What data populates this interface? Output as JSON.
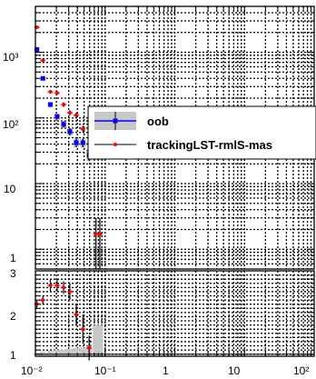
{
  "chart_data": [
    {
      "panel": "main",
      "type": "scatter",
      "x_scale": "log",
      "y_scale": "log",
      "xlim": [
        0.01,
        100
      ],
      "ylim": [
        0.5,
        5000
      ],
      "grid": true,
      "legend_placement": "middle-right",
      "y_tick_labels": [
        "1",
        "10",
        "10²",
        "10³"
      ],
      "legend": [
        "oob",
        "trackingLST-rmlS-mas"
      ],
      "series": [
        {
          "name": "oob",
          "color": "#0000ff",
          "marker": "square",
          "band_color": "#c8c8c8",
          "x": [
            0.0105,
            0.0128,
            0.0164,
            0.0205,
            0.0254,
            0.0312,
            0.0386,
            0.048,
            0.059
          ],
          "y": [
            1100,
            400,
            160,
            105,
            80,
            62,
            42,
            42,
            27
          ],
          "yerr": [
            35,
            20,
            13,
            10,
            9,
            8,
            6.5,
            6.5,
            5
          ]
        },
        {
          "name": "trackingLST-rmlS-mas",
          "color": "#ff0000",
          "marker": "circle",
          "x": [
            0.0105,
            0.0128,
            0.0164,
            0.0205,
            0.0254,
            0.0312,
            0.0386,
            0.048,
            0.059,
            0.074,
            0.084
          ],
          "y": [
            2400,
            750,
            250,
            240,
            160,
            120,
            110,
            68,
            32,
            1.7,
            1.7
          ],
          "yerr": [
            50,
            27,
            16,
            15,
            13,
            11,
            10.5,
            8,
            6,
            1.3,
            1.3
          ]
        }
      ]
    },
    {
      "panel": "ratio",
      "type": "scatter",
      "x_scale": "log",
      "xlim": [
        0.01,
        100
      ],
      "ylim": [
        0.95,
        3
      ],
      "x_tick_labels": [
        "10⁻²",
        "10⁻¹",
        "1",
        "10",
        "10²"
      ],
      "y_tick_labels": [
        "1",
        "2",
        "3"
      ],
      "series": [
        {
          "name": "trackingLST-rmlS-mas",
          "color": "#ff0000",
          "x": [
            0.0105,
            0.0128,
            0.0164,
            0.0205,
            0.0254,
            0.0312,
            0.0386,
            0.048,
            0.059
          ],
          "y": [
            2.2,
            2.3,
            2.65,
            2.65,
            2.6,
            2.5,
            1.95,
            1.6,
            1.15
          ],
          "yerr": [
            0.08,
            0.1,
            0.15,
            0.15,
            0.15,
            0.2,
            0.25,
            0.35,
            0.3
          ]
        }
      ],
      "band": {
        "color": "#c8c8c8",
        "x": [
          0.0105,
          0.0128,
          0.0164,
          0.0205,
          0.0254,
          0.0312,
          0.0386,
          0.048,
          0.059,
          0.074,
          0.084
        ],
        "half_width": [
          0.03,
          0.05,
          0.08,
          0.1,
          0.11,
          0.13,
          0.15,
          0.16,
          0.2,
          0.7,
          0.7
        ]
      }
    }
  ]
}
